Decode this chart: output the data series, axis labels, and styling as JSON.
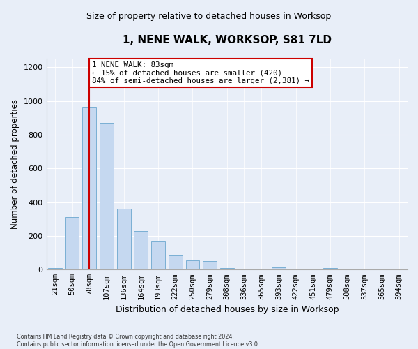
{
  "title": "1, NENE WALK, WORKSOP, S81 7LD",
  "subtitle": "Size of property relative to detached houses in Worksop",
  "xlabel": "Distribution of detached houses by size in Worksop",
  "ylabel": "Number of detached properties",
  "categories": [
    "21sqm",
    "50sqm",
    "78sqm",
    "107sqm",
    "136sqm",
    "164sqm",
    "193sqm",
    "222sqm",
    "250sqm",
    "279sqm",
    "308sqm",
    "336sqm",
    "365sqm",
    "393sqm",
    "422sqm",
    "451sqm",
    "479sqm",
    "508sqm",
    "537sqm",
    "565sqm",
    "594sqm"
  ],
  "values": [
    10,
    310,
    960,
    870,
    360,
    230,
    170,
    85,
    55,
    50,
    10,
    0,
    0,
    15,
    0,
    0,
    10,
    0,
    0,
    0,
    0
  ],
  "bar_color": "#c5d8f0",
  "bar_edge_color": "#7aafd4",
  "vline_x_index": 2,
  "vline_color": "#cc0000",
  "annotation_text": "1 NENE WALK: 83sqm\n← 15% of detached houses are smaller (420)\n84% of semi-detached houses are larger (2,381) →",
  "annotation_box_color": "#ffffff",
  "annotation_border_color": "#cc0000",
  "ylim": [
    0,
    1250
  ],
  "yticks": [
    0,
    200,
    400,
    600,
    800,
    1000,
    1200
  ],
  "footer": "Contains HM Land Registry data © Crown copyright and database right 2024.\nContains public sector information licensed under the Open Government Licence v3.0.",
  "bg_color": "#e8eef8",
  "plot_bg_color": "#e8eef8",
  "grid_color": "#ffffff",
  "title_fontsize": 11,
  "subtitle_fontsize": 9
}
